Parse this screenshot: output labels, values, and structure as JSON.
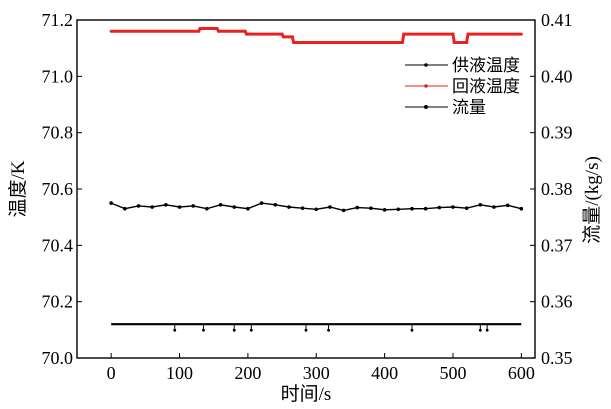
{
  "chart_data": {
    "type": "line",
    "xlabel": "时间/s",
    "ylabel_left": "温度/K",
    "ylabel_right": "流量/(kg/s)",
    "xlim": [
      -50,
      620
    ],
    "ylim_left": [
      70.0,
      71.2
    ],
    "ylim_right": [
      0.35,
      0.41
    ],
    "x_ticks": [
      0,
      100,
      200,
      300,
      400,
      500,
      600
    ],
    "y_ticks_left": [
      "70.0",
      "70.2",
      "70.4",
      "70.6",
      "70.8",
      "71.0",
      "71.2"
    ],
    "y_ticks_right": [
      "0.35",
      "0.36",
      "0.37",
      "0.38",
      "0.39",
      "0.40",
      "0.41"
    ],
    "grid": false,
    "legend_position": "right, upper area",
    "series": [
      {
        "name": "供液温度",
        "axis": "left",
        "color": "#000000",
        "style": "dotted line with small markers",
        "baseline": 70.12,
        "x": [
          0,
          600
        ],
        "y": [
          70.12,
          70.12
        ],
        "spikes_down_at": [
          93,
          135,
          180,
          205,
          285,
          318,
          440,
          540,
          550
        ]
      },
      {
        "name": "回液温度",
        "axis": "left",
        "color": "#e8231f",
        "style": "step line",
        "x": [
          0,
          128,
          130,
          155,
          157,
          196,
          198,
          250,
          252,
          265,
          267,
          426,
          428,
          500,
          502,
          520,
          522,
          600
        ],
        "y": [
          71.16,
          71.16,
          71.17,
          71.17,
          71.16,
          71.16,
          71.15,
          71.15,
          71.14,
          71.14,
          71.12,
          71.12,
          71.15,
          71.15,
          71.12,
          71.12,
          71.15,
          71.15
        ]
      },
      {
        "name": "流量",
        "axis": "right",
        "color": "#000000",
        "style": "line with dense markers",
        "mean": 0.3767,
        "x": [
          0,
          20,
          40,
          60,
          80,
          100,
          120,
          140,
          160,
          180,
          200,
          220,
          240,
          260,
          280,
          300,
          320,
          340,
          360,
          380,
          400,
          420,
          440,
          460,
          480,
          500,
          520,
          540,
          560,
          580,
          600
        ],
        "y": [
          0.3775,
          0.3765,
          0.377,
          0.3768,
          0.3772,
          0.3768,
          0.377,
          0.3765,
          0.3772,
          0.3768,
          0.3765,
          0.3775,
          0.3772,
          0.3768,
          0.3766,
          0.3764,
          0.3768,
          0.3762,
          0.3767,
          0.3766,
          0.3763,
          0.3764,
          0.3765,
          0.3765,
          0.3767,
          0.3768,
          0.3766,
          0.3772,
          0.3768,
          0.3771,
          0.3765
        ]
      }
    ]
  }
}
